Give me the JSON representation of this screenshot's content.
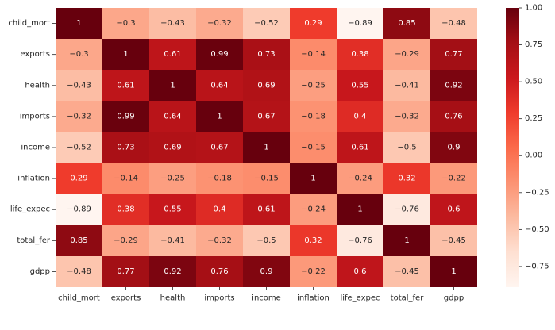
{
  "chart_data": {
    "type": "heatmap",
    "title": "",
    "xlabel": "",
    "ylabel": "",
    "x_categories": [
      "child_mort",
      "exports",
      "health",
      "imports",
      "income",
      "inflation",
      "life_expec",
      "total_fer",
      "gdpp"
    ],
    "y_categories": [
      "child_mort",
      "exports",
      "health",
      "imports",
      "income",
      "inflation",
      "life_expec",
      "total_fer",
      "gdpp"
    ],
    "values": [
      [
        1,
        -0.3,
        -0.43,
        -0.32,
        -0.52,
        0.29,
        -0.89,
        0.85,
        -0.48
      ],
      [
        -0.3,
        1,
        0.61,
        0.99,
        0.73,
        -0.14,
        0.38,
        -0.29,
        0.77
      ],
      [
        -0.43,
        0.61,
        1,
        0.64,
        0.69,
        -0.25,
        0.55,
        -0.41,
        0.92
      ],
      [
        -0.32,
        0.99,
        0.64,
        1,
        0.67,
        -0.18,
        0.4,
        -0.32,
        0.76
      ],
      [
        -0.52,
        0.73,
        0.69,
        0.67,
        1,
        -0.15,
        0.61,
        -0.5,
        0.9
      ],
      [
        0.29,
        -0.14,
        -0.25,
        -0.18,
        -0.15,
        1,
        -0.24,
        0.32,
        -0.22
      ],
      [
        -0.89,
        0.38,
        0.55,
        0.4,
        0.61,
        -0.24,
        1,
        -0.76,
        0.6
      ],
      [
        0.85,
        -0.29,
        -0.41,
        -0.32,
        -0.5,
        0.32,
        -0.76,
        1,
        -0.45
      ],
      [
        -0.48,
        0.77,
        0.92,
        0.76,
        0.9,
        -0.22,
        0.6,
        -0.45,
        1
      ]
    ],
    "colormap": "Reds",
    "color_range": [
      -0.89,
      1
    ],
    "colorbar_ticks": [
      1.0,
      0.75,
      0.5,
      0.25,
      0.0,
      -0.25,
      -0.5,
      -0.75
    ],
    "colorbar_tick_labels": [
      "1.00",
      "0.75",
      "0.50",
      "0.25",
      "0.00",
      "−0.25",
      "−0.50",
      "−0.75"
    ],
    "grid": false,
    "legend": "colorbar-right"
  }
}
